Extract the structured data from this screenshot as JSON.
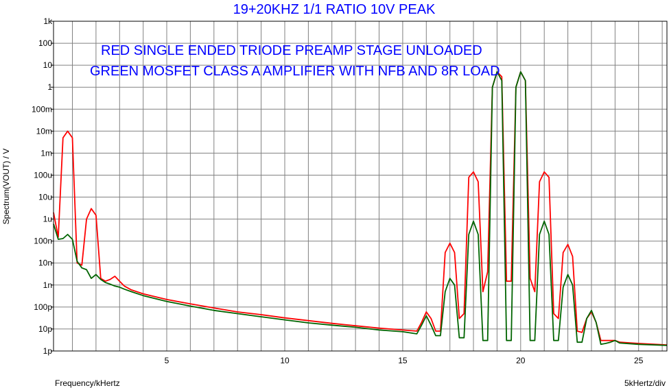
{
  "chart_data": {
    "type": "line",
    "title": "19+20KHZ 1/1 RATIO 10V PEAK",
    "annotations": [
      "RED       SINGLE ENDED TRIODE PREAMP STAGE UNLOADED",
      "GREEN  MOSFET CLASS A AMPLIFIER  WITH NFB AND 8R LOAD"
    ],
    "xlabel": "Frequency/kHertz",
    "ylabel": "Spectrum(VOUT) / V",
    "x_scale_label": "5kHertz/div",
    "x_scale": "linear",
    "y_scale": "log",
    "xlim": [
      0.2,
      26.2
    ],
    "ylim": [
      1e-12,
      1000.0
    ],
    "grid": true,
    "x_ticks": [
      {
        "value": 5,
        "label": "5"
      },
      {
        "value": 10,
        "label": "10"
      },
      {
        "value": 15,
        "label": "15"
      },
      {
        "value": 20,
        "label": "20"
      },
      {
        "value": 25,
        "label": "25"
      }
    ],
    "y_ticks": [
      {
        "value": 1000.0,
        "label": "1k"
      },
      {
        "value": 100.0,
        "label": "100"
      },
      {
        "value": 10.0,
        "label": "10"
      },
      {
        "value": 1.0,
        "label": "1"
      },
      {
        "value": 0.1,
        "label": "100m"
      },
      {
        "value": 0.01,
        "label": "10m"
      },
      {
        "value": 0.001,
        "label": "1m"
      },
      {
        "value": 0.0001,
        "label": "100u"
      },
      {
        "value": 1e-05,
        "label": "10u"
      },
      {
        "value": 1e-06,
        "label": "1u"
      },
      {
        "value": 1e-07,
        "label": "100n"
      },
      {
        "value": 1e-08,
        "label": "10n"
      },
      {
        "value": 1e-09,
        "label": "1n"
      },
      {
        "value": 1e-10,
        "label": "100p"
      },
      {
        "value": 1e-11,
        "label": "10p"
      },
      {
        "value": 1e-12,
        "label": "1p"
      }
    ],
    "series": [
      {
        "color": "#ff0000",
        "x": [
          0.2,
          0.4,
          0.6,
          0.8,
          1.0,
          1.2,
          1.4,
          1.6,
          1.8,
          2.0,
          2.2,
          2.4,
          2.6,
          2.8,
          3.0,
          3.2,
          3.5,
          4,
          5,
          6,
          7,
          8,
          9,
          10,
          11,
          12,
          13,
          14,
          15,
          15.6,
          15.8,
          16.0,
          16.2,
          16.4,
          16.6,
          16.8,
          17.0,
          17.2,
          17.4,
          17.6,
          17.8,
          18.0,
          18.2,
          18.4,
          18.6,
          18.8,
          19.0,
          19.2,
          19.4,
          19.6,
          19.8,
          20.0,
          20.2,
          20.4,
          20.6,
          20.8,
          21.0,
          21.2,
          21.4,
          21.6,
          21.8,
          22.0,
          22.2,
          22.4,
          22.6,
          22.8,
          23.0,
          23.2,
          23.4,
          23.6,
          23.8,
          24.0,
          24.2,
          25.0,
          26.2
        ],
        "y": [
          2e-06,
          1.5e-07,
          0.005,
          0.01,
          0.005,
          1e-08,
          8e-09,
          1e-06,
          3e-06,
          1.5e-06,
          2e-09,
          1.5e-09,
          1.8e-09,
          2.5e-09,
          1.5e-09,
          9e-10,
          6e-10,
          4e-10,
          2.2e-10,
          1.4e-10,
          9e-11,
          6e-11,
          4.5e-11,
          3.2e-11,
          2.4e-11,
          1.8e-11,
          1.4e-11,
          1.1e-11,
          9e-12,
          8e-12,
          2e-11,
          6e-11,
          3e-11,
          8e-12,
          8e-12,
          3e-08,
          8e-08,
          3e-08,
          3e-11,
          5e-11,
          8e-05,
          0.00014,
          5e-05,
          5e-10,
          4e-09,
          1.0,
          5.0,
          3.0,
          1.5e-09,
          1.5e-09,
          1.0,
          5.0,
          2.0,
          2e-09,
          5e-10,
          5e-05,
          0.00014,
          8e-05,
          5e-11,
          3e-11,
          3e-08,
          7e-08,
          2e-08,
          8e-12,
          7e-12,
          3e-11,
          6e-11,
          2e-11,
          3e-12,
          3e-12,
          3e-12,
          3e-12,
          2.5e-12,
          2.2e-12,
          1.9e-12
        ]
      },
      {
        "color": "#006400",
        "x": [
          0.2,
          0.4,
          0.6,
          0.8,
          1.0,
          1.2,
          1.4,
          1.6,
          1.8,
          2.0,
          2.2,
          2.4,
          2.6,
          2.8,
          3.0,
          3.2,
          3.5,
          4,
          5,
          6,
          7,
          8,
          9,
          10,
          11,
          12,
          13,
          14,
          15,
          15.6,
          15.8,
          16.0,
          16.2,
          16.4,
          16.6,
          16.8,
          17.0,
          17.2,
          17.4,
          17.6,
          17.8,
          18.0,
          18.2,
          18.4,
          18.6,
          18.8,
          19.0,
          19.2,
          19.4,
          19.6,
          19.8,
          20.0,
          20.2,
          20.4,
          20.6,
          20.8,
          21.0,
          21.2,
          21.4,
          21.6,
          21.8,
          22.0,
          22.2,
          22.4,
          22.6,
          22.8,
          23.0,
          23.2,
          23.4,
          23.6,
          23.8,
          24.0,
          24.2,
          25.0,
          26.2
        ],
        "y": [
          6e-07,
          1.2e-07,
          1.3e-07,
          2e-07,
          1.2e-07,
          1.2e-08,
          6e-09,
          5e-09,
          2e-09,
          3e-09,
          1.8e-09,
          1.3e-09,
          1.1e-09,
          9e-10,
          8e-10,
          6.5e-10,
          5e-10,
          3.3e-10,
          1.8e-10,
          1.1e-10,
          7e-11,
          5e-11,
          3.6e-11,
          2.6e-11,
          1.9e-11,
          1.5e-11,
          1.2e-11,
          9e-12,
          7.5e-12,
          6e-12,
          1.5e-11,
          4e-11,
          1.5e-11,
          5e-12,
          5e-12,
          5e-10,
          2e-09,
          1e-09,
          4e-12,
          4e-12,
          2e-07,
          8e-07,
          2e-07,
          3e-12,
          3e-12,
          1.0,
          5.0,
          2.0,
          3e-12,
          3e-12,
          1.0,
          5.0,
          2.0,
          3e-12,
          3e-12,
          2e-07,
          8e-07,
          2e-07,
          3e-12,
          3e-12,
          8e-10,
          3e-09,
          1e-09,
          2.5e-12,
          2.5e-12,
          3e-11,
          7e-11,
          2e-11,
          2e-12,
          2.2e-12,
          2.5e-12,
          3e-12,
          2.3e-12,
          2e-12,
          1.8e-12
        ]
      }
    ]
  }
}
